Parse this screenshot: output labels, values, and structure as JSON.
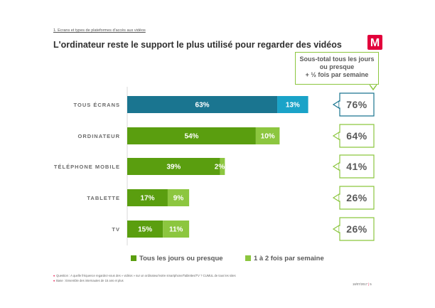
{
  "header": {
    "section": "1. Ecrans et types de plateformes d'accès aux vidéos",
    "title": "L'ordinateur reste le support le plus utilisé pour regarder des vidéos",
    "logo_letter": "M"
  },
  "subtotal_box": {
    "line1": "Sous-total tous les jours",
    "line2": "ou presque",
    "line3": "+ ½ fois par semaine"
  },
  "colors": {
    "daily_total": "#1a7590",
    "weekly_total": "#1aa3c8",
    "daily": "#5a9e0f",
    "weekly": "#8cc63f",
    "logo": "#e2003b"
  },
  "chart_data": {
    "type": "bar",
    "orientation": "horizontal",
    "stacked": true,
    "categories": [
      "TOUS ÉCRANS",
      "ORDINATEUR",
      "TÉLÉPHONE MOBILE",
      "TABLETTE",
      "TV"
    ],
    "series": [
      {
        "name": "Tous les jours ou presque",
        "values": [
          63,
          54,
          39,
          17,
          15
        ],
        "labels": [
          "63%",
          "54%",
          "39%",
          "17%",
          "15%"
        ]
      },
      {
        "name": "1 à 2 fois par semaine",
        "values": [
          13,
          10,
          2,
          9,
          11
        ],
        "labels": [
          "13%",
          "10%",
          "2%",
          "9%",
          "11%"
        ]
      }
    ],
    "subtotals": [
      "76%",
      "64%",
      "41%",
      "26%",
      "26%"
    ],
    "xlim": [
      0,
      100
    ]
  },
  "legend": {
    "item1": "Tous les jours ou presque",
    "item2": "1 à 2 fois par semaine"
  },
  "footnotes": {
    "question": "Question : A quelle fréquence regardez-vous des « vidéos » sur un ordinateur/votre smartphone/Tablettes/TV ? CUMUL de tous les sites",
    "base": "Base : Ensemble des internautes de 15 ans et plus"
  },
  "footer": {
    "date": "18/07/2017",
    "page": "5"
  }
}
